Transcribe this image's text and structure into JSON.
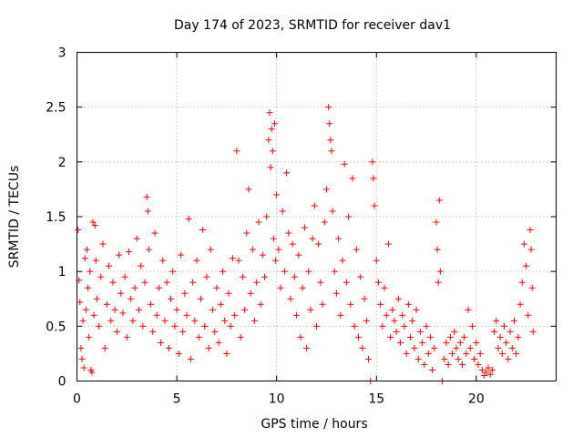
{
  "chart_data": {
    "type": "scatter",
    "title": "Day 174 of 2023, SRMTID for receiver dav1",
    "xlabel": "GPS time / hours",
    "ylabel": "SRMTID / TECUs",
    "xlim": [
      0,
      24
    ],
    "ylim": [
      0,
      3
    ],
    "xticks": [
      0,
      5,
      10,
      15,
      20
    ],
    "yticks": [
      0,
      0.5,
      1,
      1.5,
      2,
      2.5,
      3
    ],
    "xtick_labels": [
      "0",
      "5",
      "10",
      "15",
      "20"
    ],
    "ytick_labels": [
      "0",
      "0.5",
      "1",
      "1.5",
      "2",
      "2.5",
      "3"
    ],
    "grid": true,
    "legend": "none",
    "marker": "+",
    "color": "#ff0000",
    "series": [
      {
        "name": "dav1",
        "points": [
          [
            0.05,
            1.38
          ],
          [
            0.1,
            0.92
          ],
          [
            0.15,
            0.72
          ],
          [
            0.2,
            0.3
          ],
          [
            0.25,
            0.2
          ],
          [
            0.3,
            0.55
          ],
          [
            0.35,
            0.12
          ],
          [
            0.4,
            1.12
          ],
          [
            0.45,
            0.65
          ],
          [
            0.5,
            1.2
          ],
          [
            0.55,
            0.85
          ],
          [
            0.6,
            0.4
          ],
          [
            0.65,
            1.0
          ],
          [
            0.7,
            0.1
          ],
          [
            0.75,
            0.08
          ],
          [
            0.8,
            1.45
          ],
          [
            0.85,
            0.6
          ],
          [
            0.9,
            1.42
          ],
          [
            0.95,
            1.1
          ],
          [
            1.0,
            0.75
          ],
          [
            1.1,
            0.5
          ],
          [
            1.2,
            0.95
          ],
          [
            1.3,
            1.25
          ],
          [
            1.4,
            0.3
          ],
          [
            1.5,
            0.7
          ],
          [
            1.6,
            1.05
          ],
          [
            1.7,
            0.55
          ],
          [
            1.8,
            0.9
          ],
          [
            1.9,
            0.65
          ],
          [
            2.0,
            0.45
          ],
          [
            2.1,
            1.15
          ],
          [
            2.2,
            0.8
          ],
          [
            2.3,
            0.62
          ],
          [
            2.4,
            0.95
          ],
          [
            2.5,
            0.4
          ],
          [
            2.6,
            1.18
          ],
          [
            2.7,
            0.75
          ],
          [
            2.8,
            0.55
          ],
          [
            2.9,
            0.85
          ],
          [
            3.0,
            1.3
          ],
          [
            3.1,
            0.65
          ],
          [
            3.2,
            1.05
          ],
          [
            3.3,
            0.5
          ],
          [
            3.4,
            0.9
          ],
          [
            3.5,
            1.68
          ],
          [
            3.55,
            1.55
          ],
          [
            3.6,
            1.2
          ],
          [
            3.7,
            0.7
          ],
          [
            3.8,
            0.45
          ],
          [
            3.9,
            1.35
          ],
          [
            4.0,
            0.6
          ],
          [
            4.1,
            0.85
          ],
          [
            4.2,
            0.35
          ],
          [
            4.3,
            1.1
          ],
          [
            4.4,
            0.55
          ],
          [
            4.5,
            0.9
          ],
          [
            4.6,
            0.3
          ],
          [
            4.7,
            0.75
          ],
          [
            4.8,
            1.0
          ],
          [
            4.9,
            0.5
          ],
          [
            5.0,
            0.65
          ],
          [
            5.1,
            0.25
          ],
          [
            5.2,
            1.15
          ],
          [
            5.3,
            0.45
          ],
          [
            5.4,
            0.8
          ],
          [
            5.5,
            0.6
          ],
          [
            5.6,
            1.48
          ],
          [
            5.7,
            0.2
          ],
          [
            5.8,
            0.9
          ],
          [
            5.9,
            0.55
          ],
          [
            6.0,
            1.1
          ],
          [
            6.1,
            0.4
          ],
          [
            6.2,
            0.75
          ],
          [
            6.3,
            1.38
          ],
          [
            6.4,
            0.5
          ],
          [
            6.5,
            0.95
          ],
          [
            6.6,
            0.3
          ],
          [
            6.7,
            1.2
          ],
          [
            6.8,
            0.65
          ],
          [
            6.9,
            0.45
          ],
          [
            7.0,
            0.85
          ],
          [
            7.1,
            0.35
          ],
          [
            7.2,
            0.7
          ],
          [
            7.3,
            1.0
          ],
          [
            7.4,
            0.55
          ],
          [
            7.5,
            0.25
          ],
          [
            7.6,
            0.8
          ],
          [
            7.7,
            0.5
          ],
          [
            7.8,
            1.12
          ],
          [
            7.9,
            0.6
          ],
          [
            8.0,
            2.1
          ],
          [
            8.1,
            1.1
          ],
          [
            8.2,
            0.4
          ],
          [
            8.3,
            0.95
          ],
          [
            8.4,
            0.65
          ],
          [
            8.5,
            1.35
          ],
          [
            8.6,
            1.75
          ],
          [
            8.7,
            0.8
          ],
          [
            8.8,
            1.2
          ],
          [
            8.9,
            0.55
          ],
          [
            9.0,
            0.9
          ],
          [
            9.1,
            1.45
          ],
          [
            9.2,
            0.7
          ],
          [
            9.3,
            1.15
          ],
          [
            9.4,
            0.95
          ],
          [
            9.5,
            1.5
          ],
          [
            9.6,
            2.2
          ],
          [
            9.65,
            2.45
          ],
          [
            9.7,
            1.95
          ],
          [
            9.75,
            2.3
          ],
          [
            9.8,
            2.1
          ],
          [
            9.85,
            1.3
          ],
          [
            9.9,
            2.35
          ],
          [
            9.95,
            1.1
          ],
          [
            10.0,
            1.7
          ],
          [
            10.1,
            1.2
          ],
          [
            10.2,
            0.85
          ],
          [
            10.3,
            1.55
          ],
          [
            10.4,
            1.0
          ],
          [
            10.5,
            1.9
          ],
          [
            10.6,
            1.35
          ],
          [
            10.7,
            0.75
          ],
          [
            10.8,
            1.25
          ],
          [
            10.9,
            0.95
          ],
          [
            11.0,
            0.6
          ],
          [
            11.1,
            1.15
          ],
          [
            11.2,
            0.4
          ],
          [
            11.3,
            0.85
          ],
          [
            11.4,
            1.4
          ],
          [
            11.5,
            0.3
          ],
          [
            11.6,
            1.0
          ],
          [
            11.7,
            0.65
          ],
          [
            11.8,
            1.3
          ],
          [
            11.9,
            1.6
          ],
          [
            12.0,
            0.5
          ],
          [
            12.1,
            1.25
          ],
          [
            12.2,
            0.9
          ],
          [
            12.3,
            0.7
          ],
          [
            12.4,
            1.45
          ],
          [
            12.5,
            1.75
          ],
          [
            12.6,
            2.5
          ],
          [
            12.65,
            2.35
          ],
          [
            12.7,
            2.2
          ],
          [
            12.75,
            2.1
          ],
          [
            12.8,
            1.55
          ],
          [
            12.9,
            1.0
          ],
          [
            13.0,
            0.8
          ],
          [
            13.1,
            1.3
          ],
          [
            13.2,
            0.6
          ],
          [
            13.3,
            1.1
          ],
          [
            13.4,
            1.98
          ],
          [
            13.5,
            0.9
          ],
          [
            13.6,
            1.5
          ],
          [
            13.7,
            0.7
          ],
          [
            13.8,
            1.85
          ],
          [
            13.9,
            0.5
          ],
          [
            14.0,
            1.2
          ],
          [
            14.1,
            0.4
          ],
          [
            14.2,
            0.95
          ],
          [
            14.3,
            0.3
          ],
          [
            14.4,
            0.75
          ],
          [
            14.5,
            0.55
          ],
          [
            14.6,
            0.2
          ],
          [
            14.7,
            0.0
          ],
          [
            14.8,
            2.0
          ],
          [
            14.85,
            1.85
          ],
          [
            14.9,
            1.6
          ],
          [
            15.0,
            1.1
          ],
          [
            15.1,
            0.9
          ],
          [
            15.2,
            0.7
          ],
          [
            15.3,
            0.5
          ],
          [
            15.4,
            0.85
          ],
          [
            15.5,
            0.6
          ],
          [
            15.6,
            1.25
          ],
          [
            15.7,
            0.4
          ],
          [
            15.8,
            0.65
          ],
          [
            15.9,
            0.55
          ],
          [
            16.0,
            0.45
          ],
          [
            16.1,
            0.75
          ],
          [
            16.2,
            0.35
          ],
          [
            16.3,
            0.6
          ],
          [
            16.4,
            0.5
          ],
          [
            16.5,
            0.25
          ],
          [
            16.6,
            0.7
          ],
          [
            16.7,
            0.4
          ],
          [
            16.8,
            0.55
          ],
          [
            16.9,
            0.3
          ],
          [
            17.0,
            0.65
          ],
          [
            17.1,
            0.2
          ],
          [
            17.2,
            0.45
          ],
          [
            17.3,
            0.35
          ],
          [
            17.4,
            0.15
          ],
          [
            17.5,
            0.5
          ],
          [
            17.6,
            0.25
          ],
          [
            17.7,
            0.4
          ],
          [
            17.8,
            0.1
          ],
          [
            17.9,
            0.3
          ],
          [
            18.0,
            1.45
          ],
          [
            18.05,
            1.2
          ],
          [
            18.1,
            0.9
          ],
          [
            18.15,
            1.65
          ],
          [
            18.2,
            1.0
          ],
          [
            18.3,
            0.0
          ],
          [
            18.4,
            0.2
          ],
          [
            18.5,
            0.35
          ],
          [
            18.6,
            0.15
          ],
          [
            18.7,
            0.4
          ],
          [
            18.8,
            0.25
          ],
          [
            18.9,
            0.45
          ],
          [
            19.0,
            0.3
          ],
          [
            19.1,
            0.2
          ],
          [
            19.2,
            0.35
          ],
          [
            19.3,
            0.15
          ],
          [
            19.4,
            0.4
          ],
          [
            19.5,
            0.25
          ],
          [
            19.6,
            0.65
          ],
          [
            19.7,
            0.3
          ],
          [
            19.8,
            0.5
          ],
          [
            19.9,
            0.2
          ],
          [
            20.0,
            0.35
          ],
          [
            20.1,
            0.15
          ],
          [
            20.2,
            0.25
          ],
          [
            20.3,
            0.1
          ],
          [
            20.4,
            0.05
          ],
          [
            20.5,
            0.08
          ],
          [
            20.6,
            0.12
          ],
          [
            20.7,
            0.06
          ],
          [
            20.8,
            0.1
          ],
          [
            20.9,
            0.45
          ],
          [
            21.0,
            0.55
          ],
          [
            21.1,
            0.3
          ],
          [
            21.2,
            0.4
          ],
          [
            21.3,
            0.25
          ],
          [
            21.4,
            0.5
          ],
          [
            21.5,
            0.35
          ],
          [
            21.6,
            0.2
          ],
          [
            21.7,
            0.45
          ],
          [
            21.8,
            0.3
          ],
          [
            21.9,
            0.55
          ],
          [
            22.0,
            0.25
          ],
          [
            22.1,
            0.4
          ],
          [
            22.2,
            0.7
          ],
          [
            22.3,
            0.9
          ],
          [
            22.4,
            1.25
          ],
          [
            22.5,
            1.05
          ],
          [
            22.6,
            0.6
          ],
          [
            22.7,
            1.38
          ],
          [
            22.75,
            1.2
          ],
          [
            22.8,
            0.85
          ],
          [
            22.85,
            0.45
          ]
        ]
      }
    ]
  }
}
